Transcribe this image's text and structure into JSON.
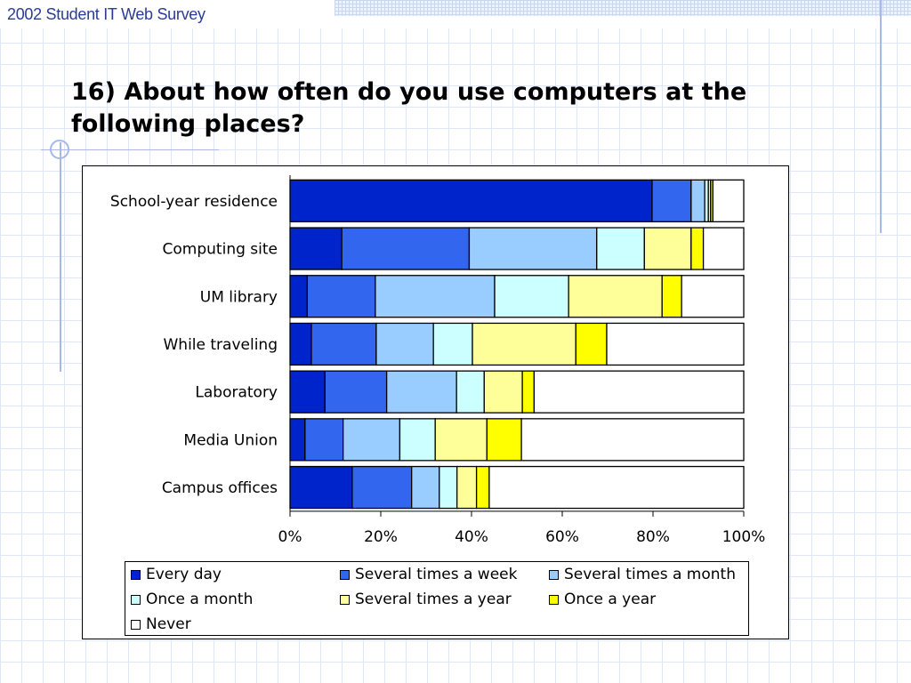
{
  "header": {
    "survey_title": "2002 Student IT Web Survey"
  },
  "slide": {
    "title": "16) About how often do you use computers at the following places?"
  },
  "chart_data": {
    "type": "bar",
    "orientation": "horizontal",
    "stacked": "percent",
    "categories": [
      "School-year residence",
      "Computing site",
      "UM library",
      "While traveling",
      "Laboratory",
      "Media Union",
      "Campus offices"
    ],
    "series": [
      {
        "name": "Every day",
        "color": "#0024cc",
        "values": [
          79.8,
          11.4,
          3.8,
          4.7,
          7.7,
          3.3,
          13.7
        ]
      },
      {
        "name": "Several times a week",
        "color": "#3366ee",
        "values": [
          8.6,
          28.1,
          15.0,
          14.3,
          13.6,
          8.4,
          13.1
        ]
      },
      {
        "name": "Several times a month",
        "color": "#99ccff",
        "values": [
          3.0,
          28.1,
          26.3,
          12.6,
          15.4,
          12.5,
          6.1
        ]
      },
      {
        "name": "Once a month",
        "color": "#ccffff",
        "values": [
          0.8,
          10.5,
          16.3,
          8.6,
          6.1,
          7.8,
          3.9
        ]
      },
      {
        "name": "Several times a year",
        "color": "#ffff99",
        "values": [
          0.5,
          10.3,
          20.6,
          22.8,
          8.4,
          11.4,
          4.3
        ]
      },
      {
        "name": "Once a year",
        "color": "#ffff00",
        "values": [
          0.5,
          2.7,
          4.3,
          6.8,
          2.6,
          7.6,
          2.8
        ]
      },
      {
        "name": "Never",
        "color": "#ffffff",
        "values": [
          6.8,
          8.9,
          13.7,
          30.2,
          46.2,
          49.0,
          56.1
        ]
      }
    ],
    "x_ticks": [
      "0%",
      "20%",
      "40%",
      "60%",
      "80%",
      "100%"
    ],
    "xlim": [
      0,
      100
    ],
    "legend_position": "bottom",
    "grid": false
  }
}
